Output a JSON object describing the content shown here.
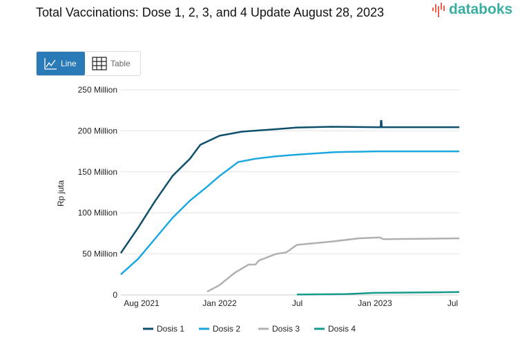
{
  "header": {
    "title": "Total Vaccinations: Dose 1, 2, 3, and 4 Update August 28, 2023",
    "logo": "databoks"
  },
  "view_toggle": {
    "line_label": "Line",
    "table_label": "Table",
    "active": "Line"
  },
  "chart_data": {
    "type": "line",
    "title": "Total Vaccinations: Dose 1, 2, 3, and 4 Update August 28, 2023",
    "ylabel": "Rp juta",
    "xlabel": "",
    "x_unit": "months since Jan 2022",
    "ylim": [
      0,
      250000000
    ],
    "yticks": [
      {
        "v": 0,
        "label": "0"
      },
      {
        "v": 50000000,
        "label": "50 Million"
      },
      {
        "v": 100000000,
        "label": "100 Million"
      },
      {
        "v": 150000000,
        "label": "150 Million"
      },
      {
        "v": 200000000,
        "label": "200 Million"
      },
      {
        "v": 250000000,
        "label": "250 Million"
      }
    ],
    "xlim": [
      -7.63,
      18.51
    ],
    "xticks": [
      {
        "v": -6.5,
        "label": "Aug 2021"
      },
      {
        "v": 0,
        "label": "Jan 2022"
      },
      {
        "v": 6,
        "label": "Jul"
      },
      {
        "v": 12,
        "label": "Jan 2023"
      },
      {
        "v": 18,
        "label": "Jul"
      }
    ],
    "grid": true,
    "legend": "bottom",
    "series": [
      {
        "name": "Dosis 1",
        "color": "#0d4f6b",
        "points": [
          [
            -7.63,
            51
          ],
          [
            -6.29,
            82
          ],
          [
            -4.96,
            115
          ],
          [
            -3.63,
            145
          ],
          [
            -2.29,
            166
          ],
          [
            -1.49,
            183
          ],
          [
            0,
            194
          ],
          [
            1.71,
            199
          ],
          [
            4.37,
            202
          ],
          [
            5.97,
            204
          ],
          [
            8.64,
            205
          ],
          [
            12,
            204.5
          ],
          [
            12.44,
            204.5
          ],
          [
            12.46,
            212
          ],
          [
            12.5,
            212
          ],
          [
            12.52,
            204.5
          ],
          [
            18.51,
            204.5
          ]
        ]
      },
      {
        "name": "Dosis 2",
        "color": "#1aa7e0",
        "points": [
          [
            -7.63,
            25
          ],
          [
            -6.29,
            44
          ],
          [
            -4.96,
            69
          ],
          [
            -3.63,
            94
          ],
          [
            -2.29,
            115
          ],
          [
            -0.96,
            132
          ],
          [
            0,
            145
          ],
          [
            1.44,
            162
          ],
          [
            2.77,
            166
          ],
          [
            4.37,
            169
          ],
          [
            5.97,
            171
          ],
          [
            8.91,
            174
          ],
          [
            12,
            175
          ],
          [
            18.51,
            175
          ]
        ]
      },
      {
        "name": "Dosis 3",
        "color": "#b0b0b0",
        "points": [
          [
            -0.96,
            4
          ],
          [
            0,
            12
          ],
          [
            1.17,
            27
          ],
          [
            2.24,
            37
          ],
          [
            2.77,
            37
          ],
          [
            3.04,
            42
          ],
          [
            4.37,
            50
          ],
          [
            5.17,
            52
          ],
          [
            5.97,
            61
          ],
          [
            8.64,
            65
          ],
          [
            10.77,
            69
          ],
          [
            12.37,
            70
          ],
          [
            12.64,
            68
          ],
          [
            18.51,
            69
          ]
        ]
      },
      {
        "name": "Dosis 4",
        "color": "#139a8a",
        "points": [
          [
            5.97,
            0.5
          ],
          [
            9.71,
            1
          ],
          [
            11.84,
            2.5
          ],
          [
            18.51,
            3.5
          ]
        ]
      }
    ],
    "value_scale": "millions"
  }
}
